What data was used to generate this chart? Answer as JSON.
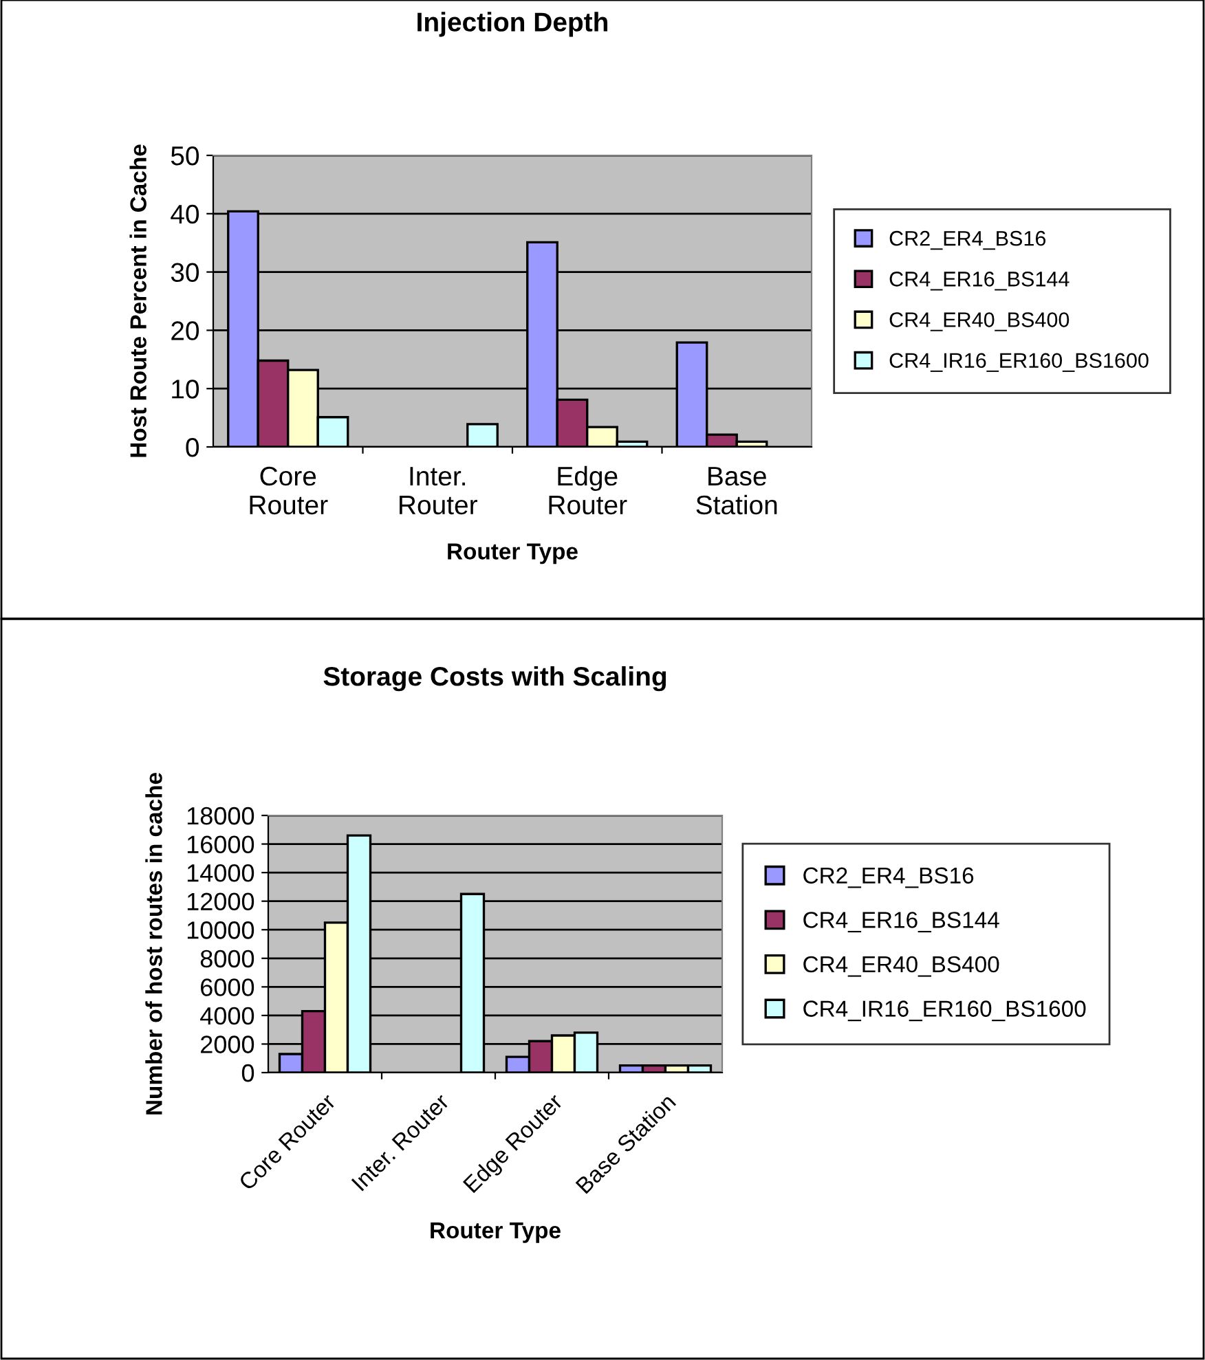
{
  "chart_data": [
    {
      "type": "bar",
      "title": "Injection Depth",
      "xlabel": "Router Type",
      "ylabel": "Host Route Percent in Cache",
      "categories": [
        "Core\nRouter",
        "Inter.\nRouter",
        "Edge\nRouter",
        "Base\nStation"
      ],
      "ylim": [
        0,
        50
      ],
      "yticks": [
        0,
        10,
        20,
        30,
        40,
        50
      ],
      "grid": "y",
      "legend": "right",
      "series": [
        {
          "name": "CR2_ER4_BS16",
          "color": "#9999ff",
          "values": [
            40.4,
            null,
            35.1,
            17.9
          ]
        },
        {
          "name": "CR4_ER16_BS144",
          "color": "#993366",
          "values": [
            14.8,
            null,
            8.1,
            2.1
          ]
        },
        {
          "name": "CR4_ER40_BS400",
          "color": "#ffffcc",
          "values": [
            13.2,
            null,
            3.4,
            0.9
          ]
        },
        {
          "name": "CR4_IR16_ER160_BS1600",
          "color": "#ccffff",
          "values": [
            5.1,
            3.9,
            0.9,
            null
          ]
        }
      ]
    },
    {
      "type": "bar",
      "title": "Storage Costs with Scaling",
      "xlabel": "Router Type",
      "ylabel": "Number of host routes in cache",
      "categories": [
        "Core Router",
        "Inter. Router",
        "Edge Router",
        "Base Station"
      ],
      "ylim": [
        0,
        18000
      ],
      "yticks": [
        0,
        2000,
        4000,
        6000,
        8000,
        10000,
        12000,
        14000,
        16000,
        18000
      ],
      "grid": "y",
      "legend": "right",
      "series": [
        {
          "name": "CR2_ER4_BS16",
          "color": "#9999ff",
          "values": [
            1300,
            null,
            1100,
            500
          ]
        },
        {
          "name": "CR4_ER16_BS144",
          "color": "#993366",
          "values": [
            4300,
            null,
            2200,
            500
          ]
        },
        {
          "name": "CR4_ER40_BS400",
          "color": "#ffffcc",
          "values": [
            10500,
            null,
            2600,
            500
          ]
        },
        {
          "name": "CR4_IR16_ER160_BS1600",
          "color": "#ccffff",
          "values": [
            16600,
            12500,
            2800,
            500
          ]
        }
      ]
    }
  ]
}
